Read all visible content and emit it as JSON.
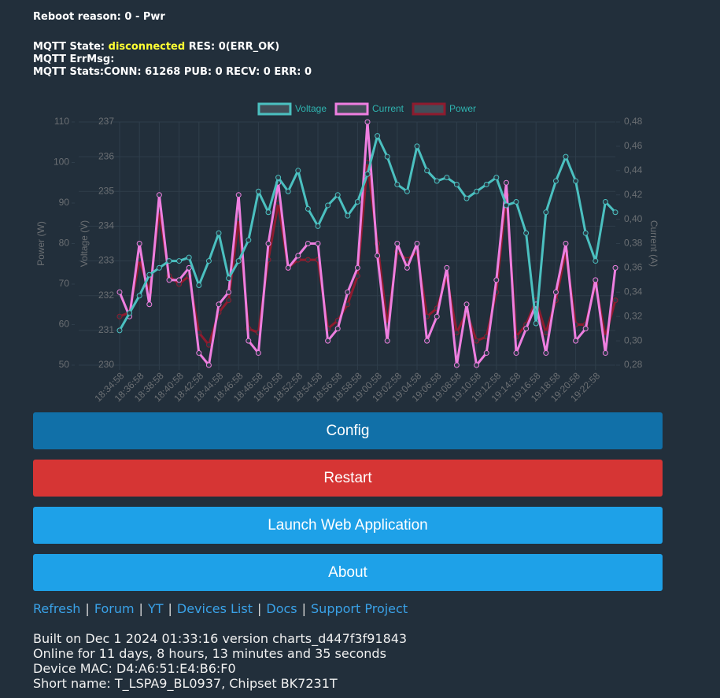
{
  "status": {
    "reboot": "Reboot reason: 0 - Pwr",
    "mqtt_state_label": "MQTT State:",
    "mqtt_state": "disconnected",
    "mqtt_res": "RES: 0(ERR_OK)",
    "mqtt_errmsg": "MQTT ErrMsg:",
    "mqtt_stats": "MQTT Stats:CONN: 61268 PUB: 0 RECV: 0 ERR: 0"
  },
  "chart_data": {
    "type": "line",
    "categories": [
      "18:34:58",
      null,
      "18:36:58",
      null,
      "18:38:58",
      null,
      "18:40:58",
      null,
      "18:42:58",
      null,
      "18:44:58",
      null,
      "18:46:58",
      null,
      "18:48:58",
      null,
      "18:50:58",
      null,
      "18:52:58",
      null,
      "18:54:58",
      null,
      "18:56:58",
      null,
      "18:58:58",
      null,
      "19:00:58",
      null,
      "19:02:58",
      null,
      "19:04:58",
      null,
      "19:06:58",
      null,
      "19:08:58",
      null,
      "19:10:58",
      null,
      "19:12:58",
      null,
      "19:14:58",
      null,
      "19:16:58",
      null,
      "19:18:58",
      null,
      "19:20:58",
      null,
      "19:22:58",
      null,
      null
    ],
    "series": [
      {
        "name": "Voltage",
        "color": "#4bc0c0",
        "axis": "y2",
        "values": [
          231,
          231.5,
          232,
          232.6,
          232.8,
          233,
          233,
          233.1,
          232.3,
          233,
          233.8,
          232.5,
          233,
          233.6,
          235,
          234.4,
          235.4,
          235,
          235.6,
          234.5,
          234,
          234.6,
          234.9,
          234.3,
          234.7,
          235.5,
          236.6,
          236,
          235.2,
          235,
          236.3,
          235.6,
          235.3,
          235.4,
          235.2,
          234.8,
          235,
          235.2,
          235.4,
          234.6,
          234.7,
          233.8,
          231.2,
          234.4,
          235.3,
          236,
          235.3,
          233.8,
          233,
          234.7,
          234.4
        ]
      },
      {
        "name": "Current",
        "color": "#ee7fe0",
        "axis": "y3",
        "values": [
          0.34,
          0.32,
          0.38,
          0.33,
          0.42,
          0.35,
          0.35,
          0.36,
          0.29,
          0.28,
          0.33,
          0.34,
          0.42,
          0.3,
          0.29,
          0.38,
          0.43,
          0.36,
          0.37,
          0.38,
          0.38,
          0.3,
          0.31,
          0.34,
          0.36,
          0.48,
          0.37,
          0.3,
          0.38,
          0.36,
          0.38,
          0.3,
          0.32,
          0.36,
          0.28,
          0.33,
          0.28,
          0.29,
          0.35,
          0.43,
          0.29,
          0.31,
          0.33,
          0.29,
          0.34,
          0.38,
          0.3,
          0.31,
          0.35,
          0.29,
          0.36
        ]
      },
      {
        "name": "Power",
        "color": "#8e1b2e",
        "axis": "y",
        "values": [
          62,
          63,
          76,
          68,
          88,
          72,
          70,
          72,
          58,
          55,
          63,
          66,
          86,
          59,
          58,
          76,
          90,
          74,
          76,
          76,
          76,
          59,
          61,
          65,
          72,
          100,
          80,
          60,
          78,
          76,
          78,
          62,
          64,
          72,
          58,
          63,
          56,
          57,
          68,
          92,
          57,
          60,
          66,
          58,
          66,
          78,
          60,
          60,
          70,
          57,
          66
        ]
      }
    ],
    "ylabel": "Power (W)",
    "ylim": [
      50,
      110
    ],
    "yticks": [
      50,
      60,
      70,
      80,
      90,
      100,
      110
    ],
    "y2label": "Voltage (V)",
    "y2lim": [
      230,
      237
    ],
    "y2ticks": [
      230,
      231,
      232,
      233,
      234,
      235,
      236,
      237
    ],
    "y3label": "Current (A)",
    "y3lim": [
      0.28,
      0.48
    ],
    "y3ticks": [
      {
        "value": 0.28,
        "label": "0,28"
      },
      {
        "value": 0.3,
        "label": "0,30"
      },
      {
        "value": 0.32,
        "label": "0,32"
      },
      {
        "value": 0.34,
        "label": "0,34"
      },
      {
        "value": 0.36,
        "label": "0,36"
      },
      {
        "value": 0.38,
        "label": "0,38"
      },
      {
        "value": 0.4,
        "label": "0,40"
      },
      {
        "value": 0.42,
        "label": "0,42"
      },
      {
        "value": 0.44,
        "label": "0,44"
      },
      {
        "value": 0.46,
        "label": "0,46"
      },
      {
        "value": 0.48,
        "label": "0,48"
      }
    ],
    "grid": true,
    "legend": "top"
  },
  "buttons": [
    {
      "label": "Config",
      "color": "#1170a8"
    },
    {
      "label": "Restart",
      "color": "#d63534"
    },
    {
      "label": "Launch Web Application",
      "color": "#1ea1e8"
    },
    {
      "label": "About",
      "color": "#1ea1e8"
    }
  ],
  "links": [
    "Refresh",
    "Forum",
    "YT",
    "Devices List",
    "Docs",
    "Support Project"
  ],
  "separator": "|",
  "info": [
    "Built on Dec 1 2024 01:33:16 version charts_d447f3f91843",
    "Online for 11 days, 8 hours, 13 minutes and 35 seconds",
    "Device MAC: D4:A6:51:E4:B6:F0",
    "Short name: T_LSPA9_BL0937, Chipset BK7231T"
  ]
}
